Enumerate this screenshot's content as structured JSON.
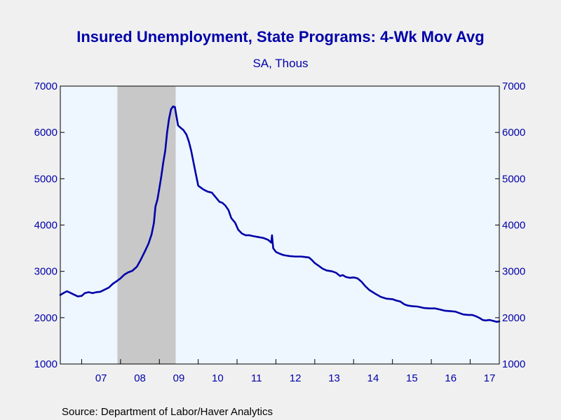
{
  "colors": {
    "background": "#f0f0f0",
    "plot_background": "#eef6ff",
    "recession_shading": "#c8c8c8",
    "series_line": "#0000aa",
    "text": "#0000aa",
    "axis": "#000000"
  },
  "chart_data": {
    "type": "line",
    "title": "Insured Unemployment, State Programs: 4-Wk Mov Avg",
    "subtitle": "SA, Thous",
    "source": "Source:  Department of Labor/Haver Analytics",
    "x_range": [
      2006.45,
      2017.75
    ],
    "ylim": [
      1000,
      7000
    ],
    "y_ticks": [
      1000,
      2000,
      3000,
      4000,
      5000,
      6000,
      7000
    ],
    "y_tick_labels": [
      "1000",
      "2000",
      "3000",
      "4000",
      "5000",
      "6000",
      "7000"
    ],
    "x_ticks": [
      2007,
      2008,
      2009,
      2010,
      2011,
      2012,
      2013,
      2014,
      2015,
      2016,
      2017
    ],
    "x_tick_labels": [
      "07",
      "08",
      "09",
      "10",
      "11",
      "12",
      "13",
      "14",
      "15",
      "16",
      "17"
    ],
    "grid": false,
    "axes": "left and right, both same scale",
    "recession_band": [
      2007.92,
      2009.42
    ],
    "series": [
      {
        "points": [
          [
            2006.45,
            2490
          ],
          [
            2006.55,
            2540
          ],
          [
            2006.62,
            2570
          ],
          [
            2006.7,
            2540
          ],
          [
            2006.8,
            2500
          ],
          [
            2006.9,
            2460
          ],
          [
            2007.0,
            2470
          ],
          [
            2007.08,
            2530
          ],
          [
            2007.18,
            2550
          ],
          [
            2007.28,
            2530
          ],
          [
            2007.38,
            2550
          ],
          [
            2007.48,
            2560
          ],
          [
            2007.58,
            2600
          ],
          [
            2007.7,
            2650
          ],
          [
            2007.8,
            2730
          ],
          [
            2007.92,
            2800
          ],
          [
            2008.0,
            2850
          ],
          [
            2008.1,
            2930
          ],
          [
            2008.2,
            2980
          ],
          [
            2008.3,
            3010
          ],
          [
            2008.42,
            3100
          ],
          [
            2008.52,
            3250
          ],
          [
            2008.62,
            3420
          ],
          [
            2008.72,
            3600
          ],
          [
            2008.8,
            3800
          ],
          [
            2008.86,
            4050
          ],
          [
            2008.9,
            4400
          ],
          [
            2008.95,
            4550
          ],
          [
            2009.0,
            4800
          ],
          [
            2009.05,
            5050
          ],
          [
            2009.1,
            5350
          ],
          [
            2009.15,
            5600
          ],
          [
            2009.2,
            6000
          ],
          [
            2009.25,
            6300
          ],
          [
            2009.3,
            6500
          ],
          [
            2009.35,
            6560
          ],
          [
            2009.4,
            6550
          ],
          [
            2009.44,
            6350
          ],
          [
            2009.48,
            6150
          ],
          [
            2009.55,
            6100
          ],
          [
            2009.62,
            6050
          ],
          [
            2009.7,
            5950
          ],
          [
            2009.76,
            5800
          ],
          [
            2009.82,
            5600
          ],
          [
            2009.88,
            5350
          ],
          [
            2009.94,
            5100
          ],
          [
            2010.0,
            4850
          ],
          [
            2010.08,
            4800
          ],
          [
            2010.15,
            4760
          ],
          [
            2010.25,
            4720
          ],
          [
            2010.35,
            4700
          ],
          [
            2010.45,
            4600
          ],
          [
            2010.55,
            4500
          ],
          [
            2010.62,
            4480
          ],
          [
            2010.7,
            4420
          ],
          [
            2010.78,
            4320
          ],
          [
            2010.85,
            4150
          ],
          [
            2010.95,
            4050
          ],
          [
            2011.03,
            3900
          ],
          [
            2011.12,
            3820
          ],
          [
            2011.22,
            3780
          ],
          [
            2011.32,
            3780
          ],
          [
            2011.42,
            3760
          ],
          [
            2011.55,
            3740
          ],
          [
            2011.68,
            3720
          ],
          [
            2011.8,
            3680
          ],
          [
            2011.88,
            3620
          ],
          [
            2011.9,
            3780
          ],
          [
            2011.93,
            3500
          ],
          [
            2012.0,
            3420
          ],
          [
            2012.1,
            3380
          ],
          [
            2012.2,
            3350
          ],
          [
            2012.35,
            3330
          ],
          [
            2012.5,
            3320
          ],
          [
            2012.65,
            3320
          ],
          [
            2012.75,
            3310
          ],
          [
            2012.85,
            3300
          ],
          [
            2012.92,
            3250
          ],
          [
            2013.0,
            3180
          ],
          [
            2013.1,
            3120
          ],
          [
            2013.2,
            3060
          ],
          [
            2013.3,
            3020
          ],
          [
            2013.45,
            3000
          ],
          [
            2013.55,
            2970
          ],
          [
            2013.65,
            2900
          ],
          [
            2013.72,
            2920
          ],
          [
            2013.8,
            2880
          ],
          [
            2013.9,
            2860
          ],
          [
            2014.0,
            2870
          ],
          [
            2014.1,
            2850
          ],
          [
            2014.2,
            2780
          ],
          [
            2014.3,
            2680
          ],
          [
            2014.4,
            2600
          ],
          [
            2014.55,
            2520
          ],
          [
            2014.7,
            2450
          ],
          [
            2014.85,
            2410
          ],
          [
            2015.0,
            2400
          ],
          [
            2015.1,
            2370
          ],
          [
            2015.2,
            2350
          ],
          [
            2015.3,
            2290
          ],
          [
            2015.4,
            2260
          ],
          [
            2015.5,
            2250
          ],
          [
            2015.65,
            2240
          ],
          [
            2015.8,
            2210
          ],
          [
            2015.95,
            2200
          ],
          [
            2016.1,
            2200
          ],
          [
            2016.2,
            2180
          ],
          [
            2016.35,
            2150
          ],
          [
            2016.5,
            2140
          ],
          [
            2016.62,
            2130
          ],
          [
            2016.72,
            2100
          ],
          [
            2016.82,
            2070
          ],
          [
            2016.95,
            2060
          ],
          [
            2017.05,
            2060
          ],
          [
            2017.15,
            2030
          ],
          [
            2017.25,
            1990
          ],
          [
            2017.32,
            1950
          ],
          [
            2017.4,
            1940
          ],
          [
            2017.5,
            1950
          ],
          [
            2017.6,
            1930
          ],
          [
            2017.68,
            1910
          ],
          [
            2017.75,
            1920
          ]
        ]
      }
    ]
  }
}
